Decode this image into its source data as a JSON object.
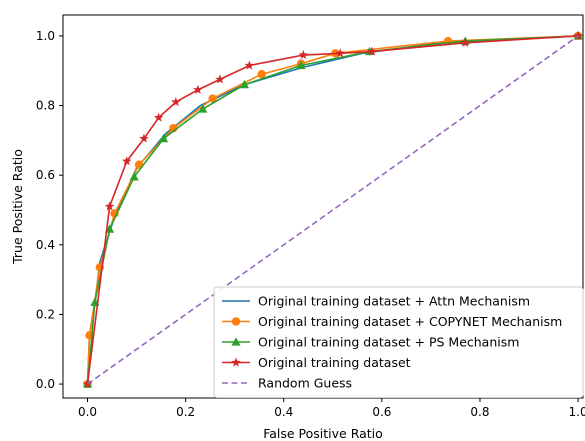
{
  "chart_data": {
    "type": "line",
    "title": "",
    "xlabel": "False Positive Ratio",
    "ylabel": "True Positive Ratio",
    "xlim": [
      -0.05,
      1.01
    ],
    "ylim": [
      -0.04,
      1.06
    ],
    "xticks": [
      "0.0",
      "0.2",
      "0.4",
      "0.6",
      "0.8",
      "1.0"
    ],
    "yticks": [
      "0.0",
      "0.2",
      "0.4",
      "0.6",
      "0.8",
      "1.0"
    ],
    "grid": false,
    "legend_position": "lower-right",
    "series": [
      {
        "name": "Original training dataset + Attn Mechanism",
        "color": "#1f77b4",
        "marker": "none",
        "x": [
          0.0,
          0.004,
          0.015,
          0.025,
          0.055,
          0.1,
          0.16,
          0.23,
          0.32,
          0.44,
          0.56,
          0.72,
          1.0
        ],
        "y": [
          0.0,
          0.14,
          0.23,
          0.35,
          0.48,
          0.62,
          0.72,
          0.8,
          0.86,
          0.91,
          0.95,
          0.98,
          1.0
        ]
      },
      {
        "name": "Original training dataset + COPYNET Mechanism",
        "color": "#ff7f0e",
        "marker": "circle",
        "x": [
          0.0,
          0.004,
          0.025,
          0.055,
          0.105,
          0.175,
          0.255,
          0.355,
          0.435,
          0.505,
          0.735,
          1.0
        ],
        "y": [
          0.0,
          0.14,
          0.335,
          0.49,
          0.63,
          0.735,
          0.82,
          0.89,
          0.92,
          0.95,
          0.985,
          1.0
        ]
      },
      {
        "name": "Original training dataset + PS Mechanism",
        "color": "#2ca02c",
        "marker": "triangle",
        "x": [
          0.0,
          0.015,
          0.045,
          0.095,
          0.155,
          0.235,
          0.32,
          0.435,
          0.575,
          0.77,
          1.0
        ],
        "y": [
          0.0,
          0.235,
          0.445,
          0.595,
          0.705,
          0.79,
          0.86,
          0.915,
          0.955,
          0.985,
          1.0
        ]
      },
      {
        "name": "Original training dataset",
        "color": "#d62728",
        "marker": "star",
        "x": [
          0.0,
          0.045,
          0.08,
          0.115,
          0.145,
          0.18,
          0.225,
          0.27,
          0.33,
          0.44,
          0.515,
          0.58,
          0.77,
          1.0
        ],
        "y": [
          0.0,
          0.51,
          0.64,
          0.705,
          0.765,
          0.81,
          0.845,
          0.875,
          0.915,
          0.945,
          0.95,
          0.955,
          0.98,
          1.0
        ]
      },
      {
        "name": "Random Guess",
        "color": "#9467bd",
        "marker": "none",
        "dash": true,
        "x": [
          0.0,
          1.0
        ],
        "y": [
          0.0,
          1.0
        ]
      }
    ]
  }
}
